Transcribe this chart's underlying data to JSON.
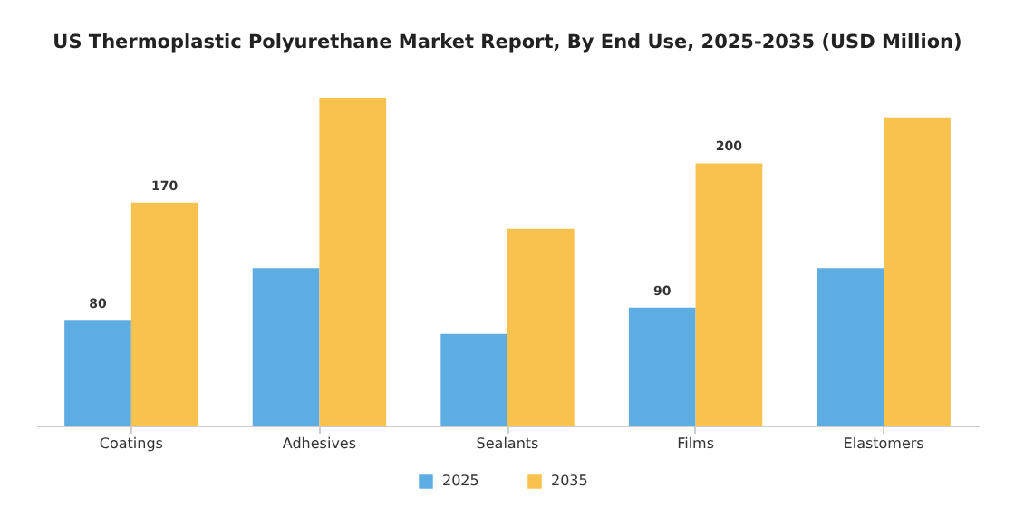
{
  "chart_data": {
    "type": "bar",
    "title": "US Thermoplastic Polyurethane Market Report, By End Use, 2025-2035 (USD Million)",
    "categories": [
      "Coatings",
      "Adhesives",
      "Sealants",
      "Films",
      "Elastomers"
    ],
    "series": [
      {
        "name": "2025",
        "color": "#5dade2",
        "values": [
          80,
          120,
          70,
          90,
          120
        ],
        "value_labels": [
          "80",
          null,
          null,
          "90",
          null
        ]
      },
      {
        "name": "2035",
        "color": "#f9c24f",
        "values": [
          170,
          250,
          150,
          200,
          235
        ],
        "value_labels": [
          "170",
          null,
          null,
          "200",
          null
        ]
      }
    ],
    "legend": "bottom"
  }
}
